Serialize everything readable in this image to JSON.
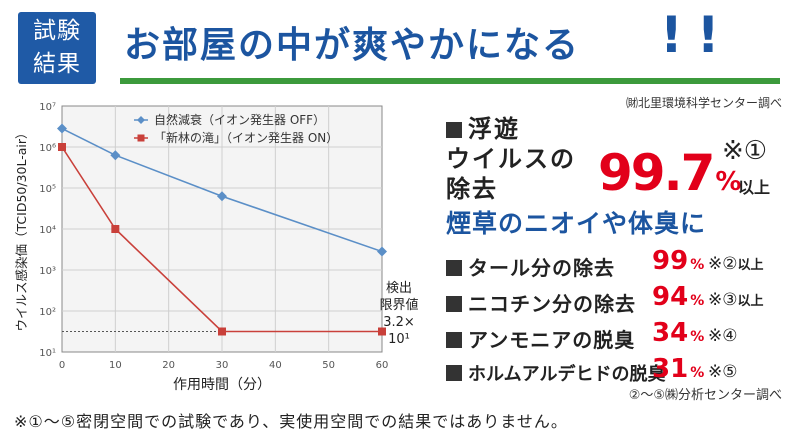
{
  "badge": {
    "line1": "試験",
    "line2": "結果"
  },
  "headline": {
    "text": "お部屋の中が爽やかになる",
    "exclaim": "!!"
  },
  "source_top": "㈶北里環境科学センター調べ",
  "floating_virus": {
    "title_line1": "浮遊",
    "title_line2": "ウイルスの",
    "title_line3": "除去",
    "value": "99.7",
    "unit": "%",
    "note": "※①",
    "suffix": "以上"
  },
  "odor_heading": "煙草のニオイや体臭に",
  "odor_rows": [
    {
      "label": "タール分の除去",
      "value": "99",
      "unit": "%",
      "note": "※②",
      "suffix": "以上"
    },
    {
      "label": "ニコチン分の除去",
      "value": "94",
      "unit": "%",
      "note": "※③",
      "suffix": "以上"
    },
    {
      "label": "アンモニアの脱臭",
      "value": "34",
      "unit": "%",
      "note": "※④",
      "suffix": ""
    },
    {
      "label": "ホルムアルデヒドの脱臭",
      "value": "31",
      "unit": "%",
      "note": "※⑤",
      "suffix": ""
    }
  ],
  "source_bottom": "②～⑤㈱分析センター調べ",
  "footnote": "※①～⑤密閉空間での試験であり、実使用空間での結果ではありません。",
  "detection_limit": {
    "line1": "検出",
    "line2": "限界値",
    "line3": "3.2×",
    "line4": "10¹"
  },
  "colors": {
    "blue": "#1c55a0",
    "badge": "#1f5aa6",
    "green": "#3c9a3c",
    "red": "#e2001a",
    "series_natural": "#5b8fc7",
    "series_ion": "#c9403a"
  },
  "chart_data": {
    "type": "line",
    "title": "",
    "xlabel": "作用時間（分）",
    "ylabel": "ウイルス感染価（TCID50/30L-air）",
    "y_scale": "log",
    "x_ticks": [
      0,
      10,
      20,
      30,
      40,
      50,
      60
    ],
    "y_tick_labels": [
      "10¹",
      "10²",
      "10³",
      "10⁴",
      "10⁵",
      "10⁶",
      "10⁷"
    ],
    "xlim": [
      0,
      60
    ],
    "ylim_log10": [
      1,
      7
    ],
    "detection_limit_log10": 1.5,
    "legend_position": "top-left",
    "series": [
      {
        "name": "自然減衰（イオン発生器 OFF）",
        "marker": "diamond",
        "x": [
          0,
          10,
          30,
          60
        ],
        "log10_y": [
          6.45,
          5.8,
          4.8,
          3.45
        ]
      },
      {
        "name": "「新林の滝」（イオン発生器 ON）",
        "marker": "square",
        "x": [
          0,
          10,
          30,
          60
        ],
        "log10_y": [
          6.0,
          4.0,
          1.5,
          1.5
        ]
      }
    ]
  }
}
